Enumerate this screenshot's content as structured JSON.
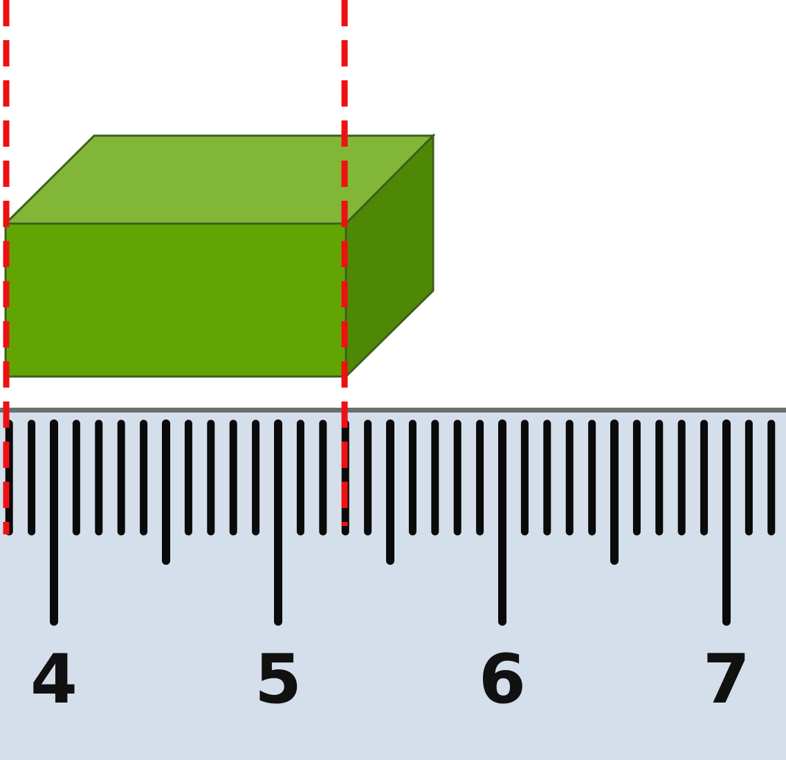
{
  "colors": {
    "block_front": "#62a503",
    "block_top": "#82b637",
    "block_side": "#4f8805",
    "block_outline": "#3c5f1f",
    "ruler_fill": "#d5dfeb",
    "ruler_edge": "#6e6e6e",
    "tick": "#0a0a0a",
    "guide": "#ee1111",
    "background": "#ffffff"
  },
  "ruler": {
    "unit_divisions": 10,
    "first_unit": 4,
    "labels": [
      "4",
      "5",
      "6",
      "7"
    ]
  },
  "measurement": {
    "left_edge": 3.8,
    "right_edge": 5.3
  }
}
